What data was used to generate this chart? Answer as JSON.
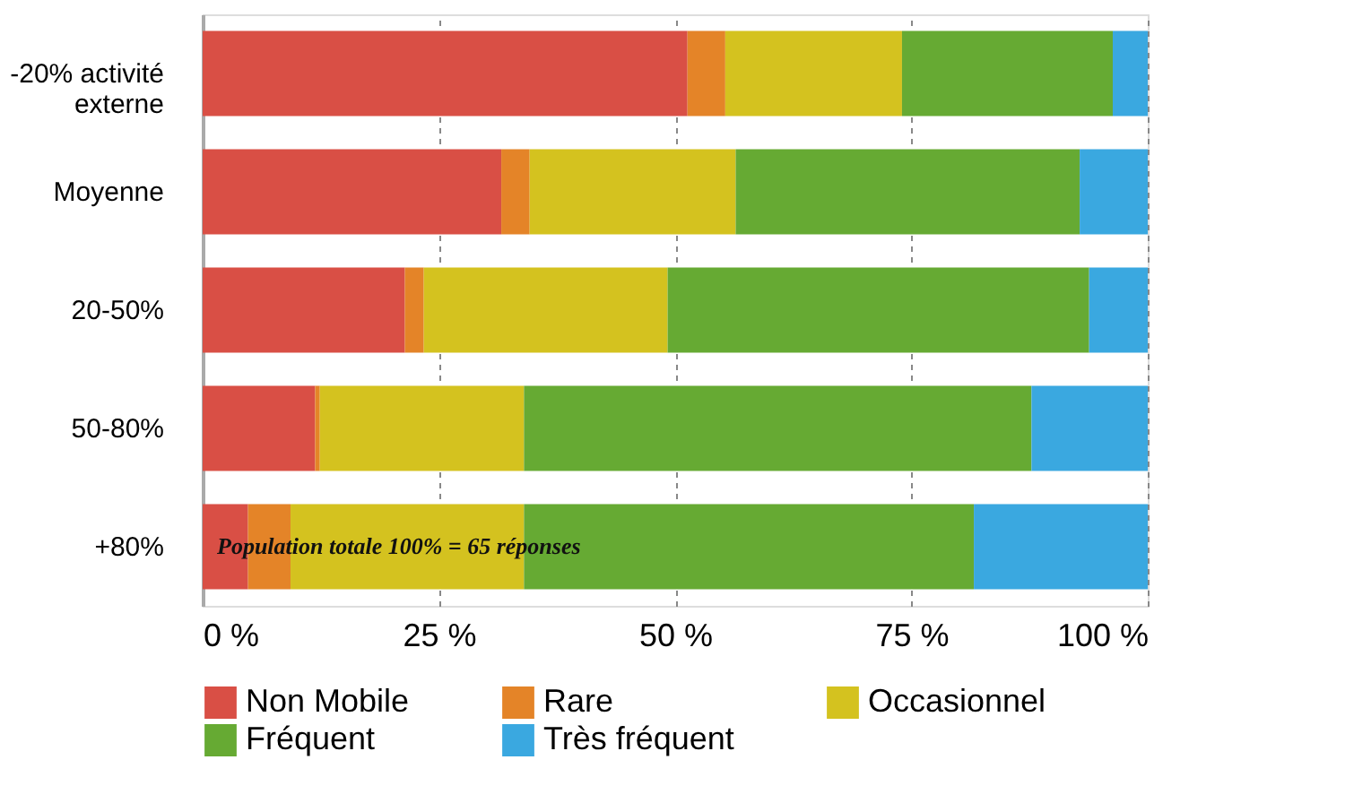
{
  "chart_data": {
    "type": "bar",
    "orientation": "horizontal",
    "stacked": true,
    "categories": [
      "-20% activité externe",
      "Moyenne",
      "20-50%",
      "50-80%",
      "+80%"
    ],
    "series": [
      {
        "name": "Non Mobile",
        "color": "#d94f45",
        "values": [
          51.3,
          31.6,
          21.4,
          11.9,
          4.8
        ]
      },
      {
        "name": "Rare",
        "color": "#e48428",
        "values": [
          4.0,
          3.0,
          2.0,
          0.5,
          4.5
        ]
      },
      {
        "name": "Occasionnel",
        "color": "#d4c21f",
        "values": [
          18.7,
          21.8,
          25.8,
          21.6,
          24.7
        ]
      },
      {
        "name": "Fréquent",
        "color": "#66aa33",
        "values": [
          22.3,
          36.4,
          44.6,
          53.7,
          47.6
        ]
      },
      {
        "name": "Très fréquent",
        "color": "#3aa8e0",
        "values": [
          3.7,
          7.2,
          6.2,
          12.3,
          18.4
        ]
      }
    ],
    "xlim": [
      0,
      100
    ],
    "xticks": [
      {
        "value": 0,
        "label": "0 %"
      },
      {
        "value": 25,
        "label": "25 %"
      },
      {
        "value": 50,
        "label": "50 %"
      },
      {
        "value": 75,
        "label": "75 %"
      },
      {
        "value": 100,
        "label": "100 %"
      }
    ],
    "grid": "x",
    "legend": "bottom",
    "annotations": [
      "Population totale 100% = 65 réponses"
    ]
  }
}
